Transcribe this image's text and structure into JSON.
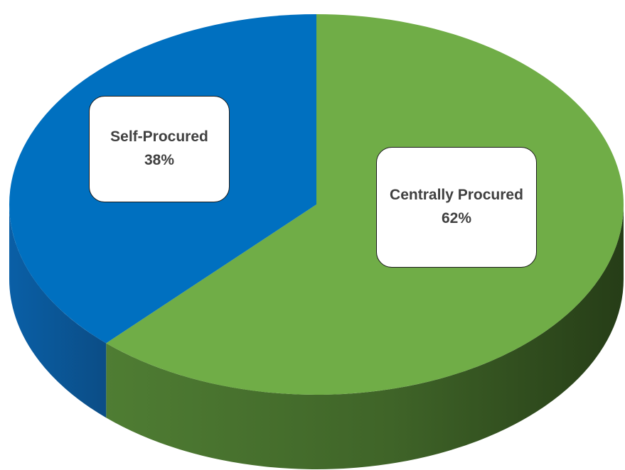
{
  "chart_data": {
    "type": "pie",
    "title": "",
    "categories": [
      "Centrally Procured",
      "Self-Procured"
    ],
    "values": [
      62,
      38
    ],
    "data_labels": [
      "62%",
      "38%"
    ],
    "colors": [
      "#70AD47",
      "#0070C0"
    ],
    "style": "3d",
    "legend": "none"
  }
}
